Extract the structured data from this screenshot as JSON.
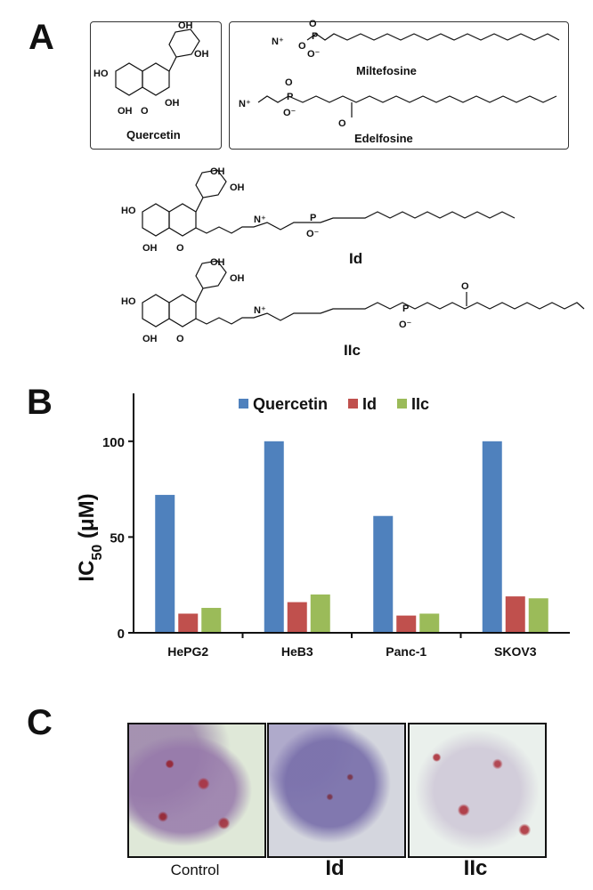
{
  "panels": {
    "a": {
      "letter": "A"
    },
    "b": {
      "letter": "B"
    },
    "c": {
      "letter": "C"
    }
  },
  "structures": {
    "quercetin": {
      "name": "Quercetin"
    },
    "miltefosine": {
      "name": "Miltefosine"
    },
    "edelfosine": {
      "name": "Edelfosine"
    },
    "id": {
      "name": "Id"
    },
    "iic": {
      "name": "IIc"
    },
    "atoms": {
      "oh": "OH",
      "ho": "HO",
      "o": "O",
      "p": "P",
      "n_plus": "N⁺",
      "o_minus": "O⁻"
    }
  },
  "chart_data": {
    "type": "bar",
    "categories": [
      "HePG2",
      "HeB3",
      "Panc-1",
      "SKOV3"
    ],
    "series": [
      {
        "name": "Quercetin",
        "values": [
          72,
          100,
          61,
          100
        ],
        "color": "#4f81bd"
      },
      {
        "name": "Id",
        "values": [
          10,
          16,
          9,
          19
        ],
        "color": "#c0504d"
      },
      {
        "name": "IIc",
        "values": [
          13,
          20,
          10,
          18
        ],
        "color": "#9bbb59"
      }
    ],
    "ylabel": "IC50 (μM)",
    "ylim": [
      0,
      125
    ],
    "yticks": [
      0,
      50,
      100
    ],
    "legend": "top",
    "grid": false
  },
  "micrographs": {
    "labels": [
      "Control",
      "Id",
      "IIc"
    ]
  }
}
